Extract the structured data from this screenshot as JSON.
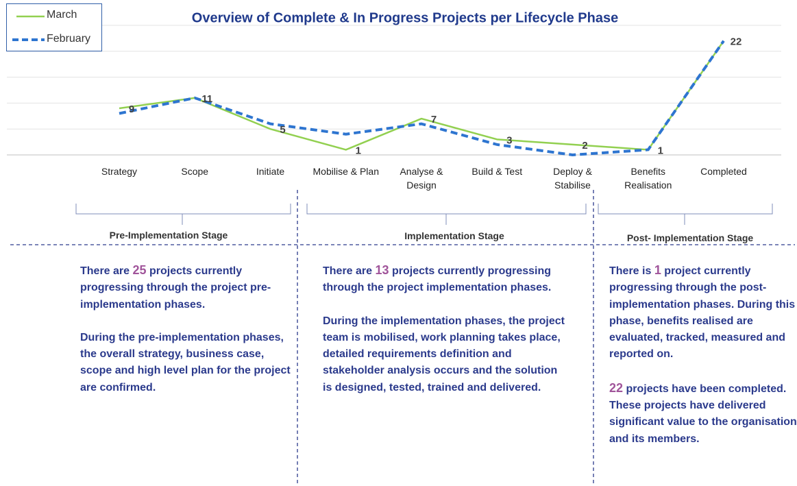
{
  "chart_data": {
    "type": "line",
    "title": "Overview of Complete & In Progress Projects per Lifecycle Phase",
    "categories": [
      "Strategy",
      "Scope",
      "Initiate",
      "Mobilise & Plan",
      "Analyse & Design",
      "Build & Test",
      "Deploy & Stabilise",
      "Benefits Realisation",
      "Completed"
    ],
    "series": [
      {
        "name": "March",
        "color": "#92d050",
        "style": "solid",
        "values": [
          9,
          11,
          5,
          1,
          7,
          3,
          2,
          1,
          22
        ],
        "labels": true
      },
      {
        "name": "February",
        "color": "#2e75d0",
        "style": "dashed",
        "values": [
          8,
          11,
          6,
          4,
          6,
          2,
          0,
          1,
          22
        ],
        "labels": false
      }
    ],
    "ylim": [
      0,
      25
    ],
    "yticks": [
      0,
      5,
      10,
      15,
      20,
      25
    ],
    "grid": true,
    "legend": "top-left"
  },
  "stages": [
    {
      "name": "Pre-Implementation Stage",
      "paragraphs": [
        {
          "before": "There are",
          "highlight": 25,
          "after": "projects currently progressing through the project pre-implementation phases."
        },
        {
          "text": "During the pre-implementation phases, the overall strategy, business case, scope and high level plan for the project are confirmed."
        }
      ]
    },
    {
      "name": "Implementation Stage",
      "paragraphs": [
        {
          "before": "There are",
          "highlight": 13,
          "after": "projects currently progressing through the project implementation phases."
        },
        {
          "text": "During the implementation phases, the project team is mobilised,  work planning takes place, detailed requirements definition and stakeholder analysis occurs and the solution is designed, tested, trained and delivered."
        }
      ]
    },
    {
      "name": "Post- Implementation Stage",
      "paragraphs": [
        {
          "before": "There is",
          "highlight": 1,
          "after": "project currently progressing through the post-implementation phases. During this phase, benefits realised are evaluated, tracked, measured and reported on."
        },
        {
          "before": "",
          "highlight": 22,
          "after": "projects have been completed. These projects have delivered significant value to the organisation and its members."
        }
      ]
    }
  ]
}
